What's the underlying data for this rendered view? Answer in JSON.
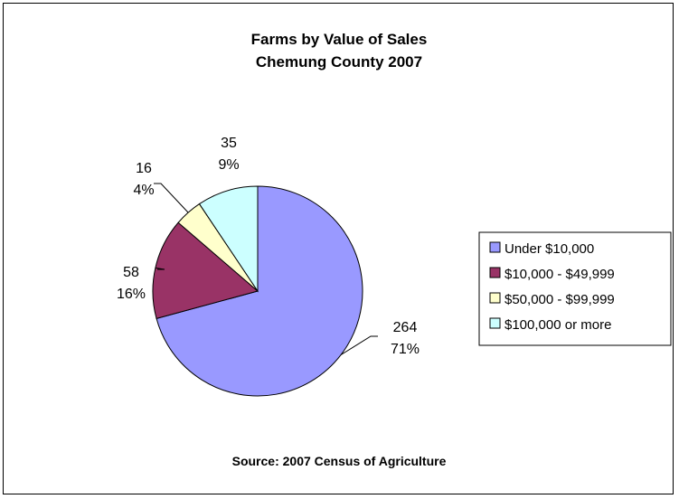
{
  "chart_data": {
    "type": "pie",
    "title": "Farms by Value of Sales",
    "subtitle": "Chemung County 2007",
    "categories": [
      "Under $10,000",
      "$10,000 - $49,999",
      "$50,000 - $99,999",
      "$100,000 or more"
    ],
    "values": [
      264,
      58,
      16,
      35
    ],
    "percent_labels": [
      "71%",
      "16%",
      "4%",
      "9%"
    ],
    "value_labels": [
      "264",
      "58",
      "16",
      "35"
    ],
    "colors": [
      "#9999ff",
      "#993366",
      "#ffffcc",
      "#ccffff"
    ],
    "legend_position": "right",
    "source": "Source:  2007 Census of Agriculture"
  }
}
